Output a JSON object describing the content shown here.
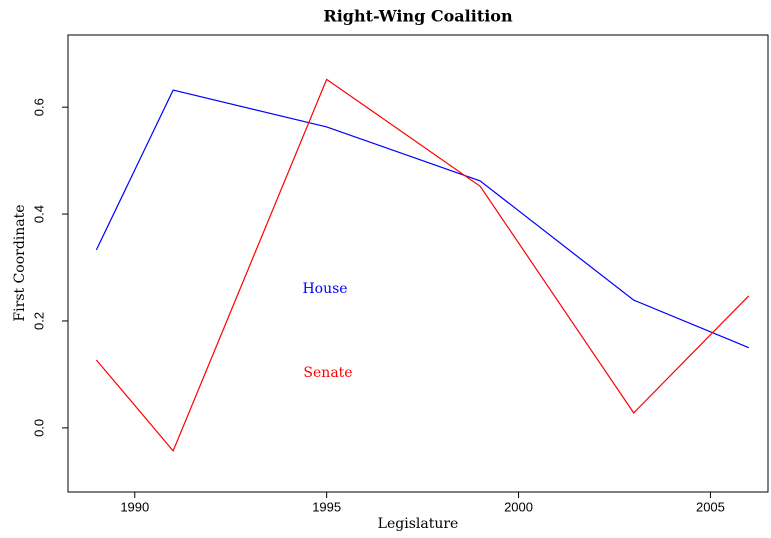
{
  "chart_data": {
    "type": "line",
    "title": "Right-Wing Coalition",
    "x_label": "Legislature",
    "y_label": "First Coordinate",
    "x": [
      1989,
      1991,
      1995,
      1999,
      2003,
      2006
    ],
    "series": [
      {
        "name": "House",
        "color": "#0000ff",
        "values": [
          0.333,
          0.632,
          0.563,
          0.462,
          0.239,
          0.15
        ]
      },
      {
        "name": "Senate",
        "color": "#ff0000",
        "values": [
          0.127,
          -0.043,
          0.652,
          0.452,
          0.028,
          0.247
        ]
      }
    ],
    "xlim": [
      1988.26,
      2006.5
    ],
    "xticks": [
      1990,
      1995,
      2000,
      2005
    ],
    "ylim": [
      -0.12,
      0.735
    ],
    "yticks": [
      {
        "value": 0,
        "label": "0.0"
      },
      0.2,
      0.4,
      0.6
    ]
  }
}
